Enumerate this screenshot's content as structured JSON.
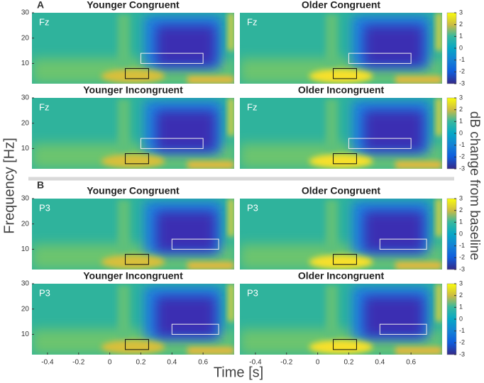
{
  "figure": {
    "y_label": "Frequency [Hz]",
    "x_label": "Time [s]",
    "colorbar_label": "dB change from baseline",
    "xlim": [
      -0.5,
      0.8
    ],
    "xticks": [
      -0.4,
      -0.2,
      0,
      0.2,
      0.4,
      0.6
    ],
    "ylim": [
      2,
      30
    ],
    "yticks": [
      10,
      20,
      30
    ],
    "clim": [
      -3,
      3
    ],
    "cticks": [
      -3,
      -2,
      -1,
      0,
      1,
      2,
      3
    ],
    "theta_window": {
      "time": [
        0.1,
        0.25
      ],
      "freq": [
        4,
        8
      ]
    },
    "sections": [
      {
        "label": "A",
        "alpha_window": {
          "time": [
            0.2,
            0.6
          ],
          "freq": [
            10,
            14
          ]
        },
        "panels": [
          {
            "title": "Younger Congruent",
            "channel": "Fz"
          },
          {
            "title": "Older Congruent",
            "channel": "Fz"
          },
          {
            "title": "Younger Incongruent",
            "channel": "Fz"
          },
          {
            "title": "Older Incongruent",
            "channel": "Fz"
          }
        ]
      },
      {
        "label": "B",
        "alpha_window": {
          "time": [
            0.4,
            0.7
          ],
          "freq": [
            10,
            14
          ]
        },
        "panels": [
          {
            "title": "Younger Congruent",
            "channel": "P3"
          },
          {
            "title": "Older Congruent",
            "channel": "P3"
          },
          {
            "title": "Younger Incongruent",
            "channel": "P3"
          },
          {
            "title": "Older Incongruent",
            "channel": "P3"
          }
        ]
      }
    ]
  }
}
